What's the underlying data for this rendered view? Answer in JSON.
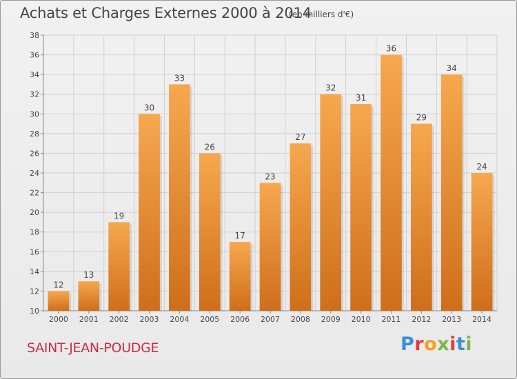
{
  "header": {
    "title": "Achats et Charges Externes 2000 à 2014",
    "subtitle": "(en milliers d'€)"
  },
  "footer": {
    "commune": "SAINT-JEAN-POUDGE",
    "logo_text": "Proxiti"
  },
  "colors": {
    "bar_light": "#f6a84e",
    "bar_dark": "#cf6e1a",
    "grid": "#d0d0d0",
    "commune": "#cc2b4a",
    "logo": [
      "#3a8ede",
      "#e23b3b",
      "#f2a125",
      "#7ab648",
      "#e23b3b",
      "#3a8ede",
      "#7ab648"
    ]
  },
  "chart_data": {
    "type": "bar",
    "title": "Achats et Charges Externes 2000 à 2014",
    "subtitle": "(en milliers d'€)",
    "categories": [
      "2000",
      "2001",
      "2002",
      "2003",
      "2004",
      "2005",
      "2006",
      "2007",
      "2008",
      "2009",
      "2010",
      "2011",
      "2012",
      "2013",
      "2014"
    ],
    "values": [
      12,
      13,
      19,
      30,
      33,
      26,
      17,
      23,
      27,
      32,
      31,
      36,
      29,
      34,
      24
    ],
    "ylim": [
      10,
      38
    ],
    "yticks": [
      10,
      12,
      14,
      16,
      18,
      20,
      22,
      24,
      26,
      28,
      30,
      32,
      34,
      36,
      38
    ],
    "grid": true,
    "data_labels": true
  }
}
